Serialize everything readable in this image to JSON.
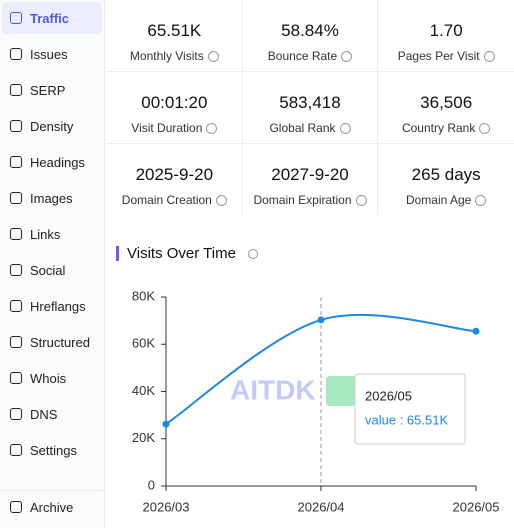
{
  "sidebar": {
    "items": [
      "Traffic",
      "Issues",
      "SERP",
      "Density",
      "Headings",
      "Images",
      "Links",
      "Social",
      "Hreflangs",
      "Structured",
      "Whois",
      "DNS",
      "Settings"
    ],
    "active": 0,
    "footer": "Archive"
  },
  "stats": [
    {
      "value": "65.51K",
      "label": "Monthly Visits"
    },
    {
      "value": "58.84%",
      "label": "Bounce Rate"
    },
    {
      "value": "1.70",
      "label": "Pages Per Visit"
    },
    {
      "value": "00:01:20",
      "label": "Visit Duration"
    },
    {
      "value": "583,418",
      "label": "Global Rank"
    },
    {
      "value": "36,506",
      "label": "Country Rank"
    },
    {
      "value": "2025-9-20",
      "label": "Domain Creation"
    },
    {
      "value": "2027-9-20",
      "label": "Domain Expiration"
    },
    {
      "value": "265 days",
      "label": "Domain Age"
    }
  ],
  "chart_data": {
    "type": "line",
    "title": "Visits Over Time",
    "categories": [
      "2026/03",
      "2026/04",
      "2026/05"
    ],
    "values": [
      26200,
      70300,
      65510
    ],
    "color": "#1e88e5",
    "ylim": [
      0,
      80000
    ],
    "yticks": [
      0,
      {
        "value": 20000,
        "label": "20K"
      },
      {
        "value": 40000,
        "label": "40K"
      },
      {
        "value": 60000,
        "label": "60K"
      },
      {
        "value": 80000,
        "label": "80K"
      }
    ],
    "watermark": "AITDK",
    "tooltip": {
      "title": "2026/05",
      "label": "value : 65.51K"
    }
  }
}
